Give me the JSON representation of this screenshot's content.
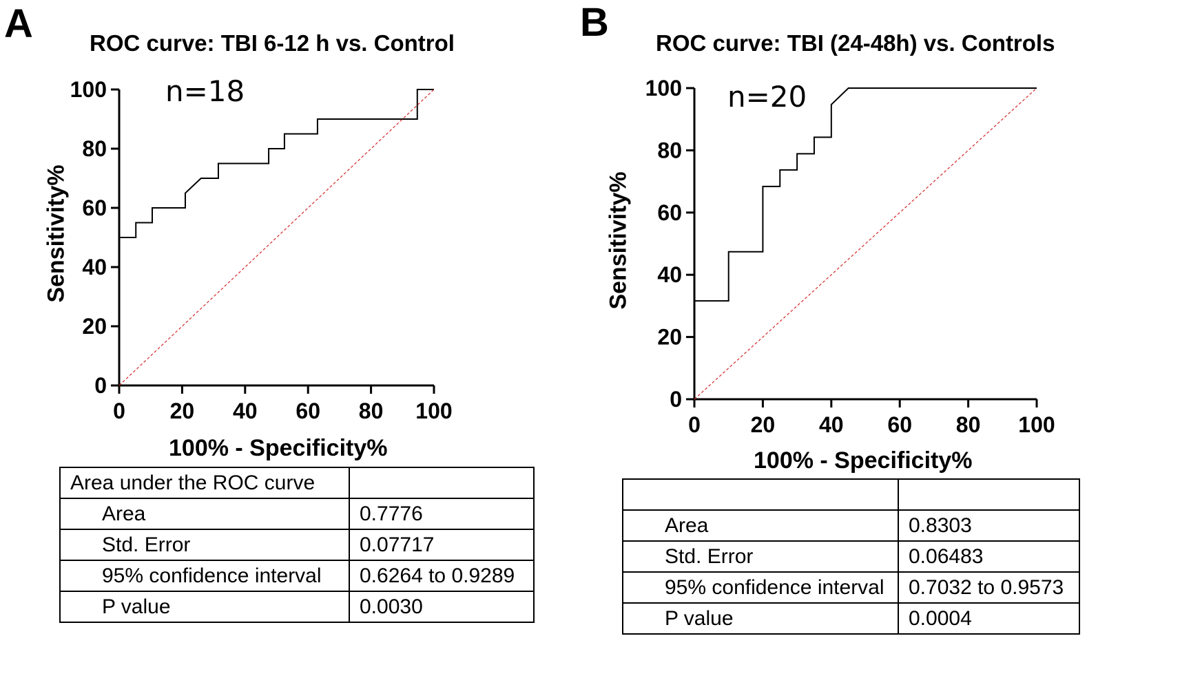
{
  "panels": [
    {
      "letter": "A",
      "n_label": "n=18",
      "table": {
        "header": [
          "Area under the ROC curve",
          ""
        ],
        "rows": [
          [
            "Area",
            "0.7776"
          ],
          [
            "Std. Error",
            "0.07717"
          ],
          [
            "95% confidence interval",
            "0.6264 to 0.9289"
          ],
          [
            "P value",
            "0.0030"
          ]
        ]
      }
    },
    {
      "letter": "B",
      "n_label": "n=20",
      "table": {
        "header": [
          "",
          ""
        ],
        "rows": [
          [
            "Area",
            "0.8303"
          ],
          [
            "Std. Error",
            "0.06483"
          ],
          [
            "95% confidence interval",
            "0.7032 to 0.9573"
          ],
          [
            "P value",
            "0.0004"
          ]
        ]
      }
    }
  ],
  "chart_data": [
    {
      "type": "line",
      "title": "ROC curve: TBI 6-12 h vs. Control",
      "xlabel": "100% - Specificity%",
      "ylabel": "Sensitivity%",
      "xlim": [
        0,
        100
      ],
      "ylim": [
        0,
        100
      ],
      "xticks": [
        0,
        20,
        40,
        60,
        80,
        100
      ],
      "yticks": [
        0,
        20,
        40,
        60,
        80,
        100
      ],
      "series": [
        {
          "name": "ROC",
          "color": "#000000",
          "style": "solid",
          "x": [
            0,
            0,
            5.3,
            5.3,
            10.5,
            10.5,
            21,
            21,
            26,
            31.5,
            31.5,
            47.5,
            47.5,
            52.5,
            52.5,
            63,
            63,
            94.7,
            94.7,
            100
          ],
          "y": [
            0,
            50,
            50,
            55,
            55,
            60,
            60,
            65,
            70,
            70,
            75,
            75,
            80,
            80,
            85,
            85,
            90,
            90,
            100,
            100
          ]
        },
        {
          "name": "Reference",
          "color": "#d62728",
          "style": "dashed",
          "x": [
            0,
            100
          ],
          "y": [
            0,
            100
          ]
        }
      ]
    },
    {
      "type": "line",
      "title": "ROC curve: TBI (24-48h) vs. Controls",
      "xlabel": "100% - Specificity%",
      "ylabel": "Sensitivity%",
      "xlim": [
        0,
        100
      ],
      "ylim": [
        0,
        100
      ],
      "xticks": [
        0,
        20,
        40,
        60,
        80,
        100
      ],
      "yticks": [
        0,
        20,
        40,
        60,
        80,
        100
      ],
      "series": [
        {
          "name": "ROC",
          "color": "#000000",
          "style": "solid",
          "x": [
            0,
            0,
            10,
            10,
            20,
            20,
            25,
            25,
            30,
            30,
            35,
            35,
            40,
            40,
            45,
            100
          ],
          "y": [
            0,
            31.6,
            31.6,
            47.4,
            47.4,
            68.4,
            68.4,
            73.7,
            73.7,
            78.9,
            78.9,
            84.2,
            84.2,
            94.7,
            100,
            100
          ]
        },
        {
          "name": "Reference",
          "color": "#d62728",
          "style": "dashed",
          "x": [
            0,
            100
          ],
          "y": [
            0,
            100
          ]
        }
      ]
    }
  ]
}
